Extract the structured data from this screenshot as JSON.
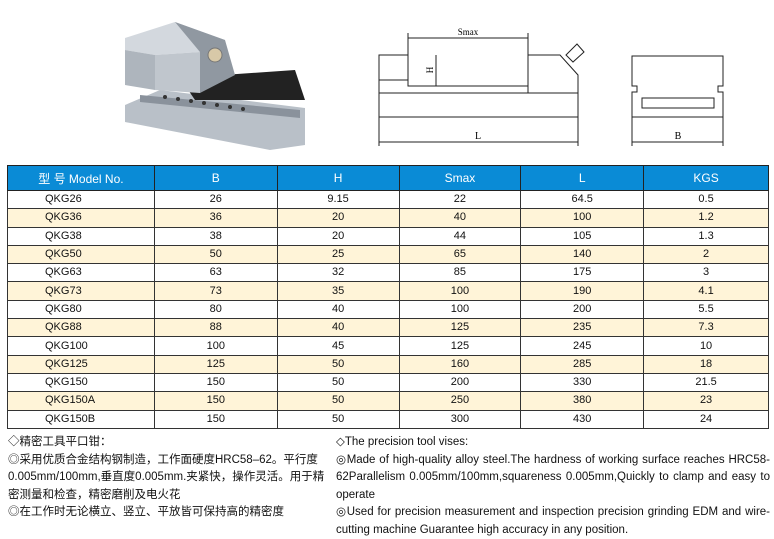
{
  "table": {
    "headers": [
      "型 号 Model No.",
      "B",
      "H",
      "Smax",
      "L",
      "KGS"
    ],
    "rows": [
      [
        "QKG26",
        "26",
        "9.15",
        "22",
        "64.5",
        "0.5"
      ],
      [
        "QKG36",
        "36",
        "20",
        "40",
        "100",
        "1.2"
      ],
      [
        "QKG38",
        "38",
        "20",
        "44",
        "105",
        "1.3"
      ],
      [
        "QKG50",
        "50",
        "25",
        "65",
        "140",
        "2"
      ],
      [
        "QKG63",
        "63",
        "32",
        "85",
        "175",
        "3"
      ],
      [
        "QKG73",
        "73",
        "35",
        "100",
        "190",
        "4.1"
      ],
      [
        "QKG80",
        "80",
        "40",
        "100",
        "200",
        "5.5"
      ],
      [
        "QKG88",
        "88",
        "40",
        "125",
        "235",
        "7.3"
      ],
      [
        "QKG100",
        "100",
        "45",
        "125",
        "245",
        "10"
      ],
      [
        "QKG125",
        "125",
        "50",
        "160",
        "285",
        "18"
      ],
      [
        "QKG150",
        "150",
        "50",
        "200",
        "330",
        "21.5"
      ],
      [
        "QKG150A",
        "150",
        "50",
        "250",
        "380",
        "23"
      ],
      [
        "QKG150B",
        "150",
        "50",
        "300",
        "430",
        "24"
      ]
    ]
  },
  "drawing": {
    "smax": "Smax",
    "h": "H",
    "l": "L",
    "b": "B"
  },
  "notes_cn": [
    "◇精密工具平口钳：",
    "◎采用优质合金结构钢制造，工作面硬度HRC58–62。平行度0.005mm/100mm,垂直度0.005mm.夹紧快，操作灵活。用于精密测量和检查，精密磨削及电火花",
    "◎在工作时无论横立、竖立、平放皆可保持高的精密度"
  ],
  "notes_en": [
    "◇The precision tool vises:",
    "◎Made of high-quality alloy steel.The hardness of working surface reaches HRC58-62Parallelism 0.005mm/100mm,squareness 0.005mm,Quickly to clamp and easy to operate",
    "◎Used for precision measurement and inspection precision grinding EDM and wire-cutting machine Guarantee high accuracy in any position."
  ],
  "colors": {
    "header": "#0a8bd6",
    "stripe": "#fff4d8"
  }
}
